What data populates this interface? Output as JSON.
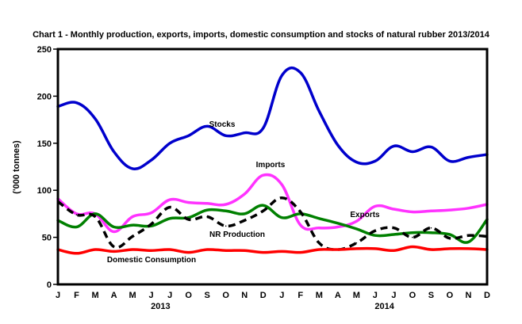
{
  "chart_data": {
    "type": "line",
    "title": "Chart 1 - Monthly production, exports, imports, domestic consumption and stocks of natural rubber 2013/2014",
    "xlabel": "",
    "ylabel": "('000 tonnes)",
    "ylim": [
      0,
      250
    ],
    "yticks": [
      "0",
      "50",
      "100",
      "150",
      "200",
      "250"
    ],
    "grid": false,
    "legend": "inline-annotations",
    "categories": [
      "J",
      "F",
      "M",
      "A",
      "M",
      "J",
      "J",
      "O",
      "S",
      "O",
      "N",
      "D",
      "J",
      "F",
      "M",
      "A",
      "M",
      "J",
      "J",
      "O",
      "S",
      "O",
      "N",
      "D"
    ],
    "year_labels": [
      {
        "label": "2013",
        "center_month_index": 5.5
      },
      {
        "label": "2014",
        "center_month_index": 17.5
      }
    ],
    "series": [
      {
        "name": "Stocks",
        "color": "#0000cc",
        "style": "solid",
        "values": [
          189,
          193,
          176,
          141,
          123,
          132,
          150,
          158,
          168,
          158,
          161,
          166,
          222,
          225,
          184,
          148,
          130,
          131,
          147,
          141,
          146,
          131,
          135,
          138
        ]
      },
      {
        "name": "Imports",
        "color": "#ff33ff",
        "style": "solid",
        "values": [
          91,
          75,
          75,
          56,
          72,
          76,
          90,
          87,
          86,
          85,
          96,
          116,
          106,
          63,
          60,
          61,
          67,
          83,
          80,
          77,
          78,
          79,
          81,
          85
        ]
      },
      {
        "name": "Exports",
        "color": "#008000",
        "style": "solid",
        "values": [
          68,
          61,
          75,
          61,
          63,
          62,
          70,
          71,
          79,
          78,
          75,
          84,
          71,
          75,
          70,
          65,
          59,
          52,
          53,
          55,
          55,
          53,
          45,
          69
        ]
      },
      {
        "name": "NR Production",
        "color": "#000000",
        "style": "dashed",
        "values": [
          88,
          74,
          72,
          40,
          51,
          64,
          82,
          69,
          72,
          62,
          68,
          78,
          92,
          77,
          44,
          37,
          44,
          57,
          60,
          50,
          60,
          49,
          52,
          51
        ]
      },
      {
        "name": "Domestic Consumption",
        "color": "#ff0000",
        "style": "solid",
        "values": [
          37,
          33,
          37,
          35,
          37,
          36,
          37,
          34,
          37,
          36,
          36,
          34,
          35,
          34,
          37,
          37,
          38,
          38,
          36,
          40,
          37,
          38,
          38,
          37
        ]
      }
    ],
    "annotations": [
      {
        "text": "Stocks",
        "series": "Stocks"
      },
      {
        "text": "Imports",
        "series": "Imports"
      },
      {
        "text": "Exports",
        "series": "Exports"
      },
      {
        "text": "NR Production",
        "series": "NR Production"
      },
      {
        "text": "Domestic Consumption",
        "series": "Domestic Consumption"
      }
    ]
  }
}
